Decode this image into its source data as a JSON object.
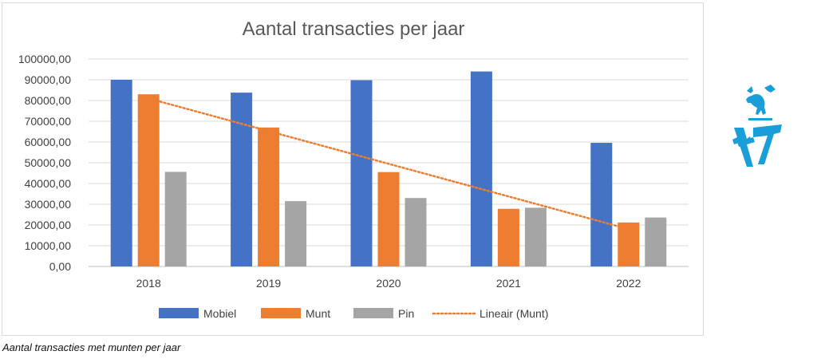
{
  "caption": "Aantal transacties met munten per jaar",
  "logo": {
    "name": "municipality-logo",
    "color": "#1a9ed9"
  },
  "chart_data": {
    "type": "bar",
    "title": "Aantal transacties per jaar",
    "xlabel": "",
    "ylabel": "",
    "categories": [
      "2018",
      "2019",
      "2020",
      "2021",
      "2022"
    ],
    "ylim": [
      0,
      100000
    ],
    "ytick_step": 10000,
    "ytick_labels": [
      "0,00",
      "10000,00",
      "20000,00",
      "30000,00",
      "40000,00",
      "50000,00",
      "60000,00",
      "70000,00",
      "80000,00",
      "90000,00",
      "100000,00"
    ],
    "grid": true,
    "legend_position": "bottom",
    "series": [
      {
        "name": "Mobiel",
        "color": "#4472c4",
        "values": [
          90000,
          83800,
          89800,
          94000,
          59600
        ]
      },
      {
        "name": "Munt",
        "color": "#ed7d31",
        "values": [
          83000,
          67000,
          45500,
          27800,
          21200
        ]
      },
      {
        "name": "Pin",
        "color": "#a5a5a5",
        "values": [
          45600,
          31500,
          33000,
          28300,
          23600
        ]
      }
    ],
    "trendline": {
      "name": "Lineair (Munt)",
      "series": "Munt",
      "type": "linear",
      "color": "#ed7d31",
      "start": 81000,
      "end": 18000
    }
  }
}
